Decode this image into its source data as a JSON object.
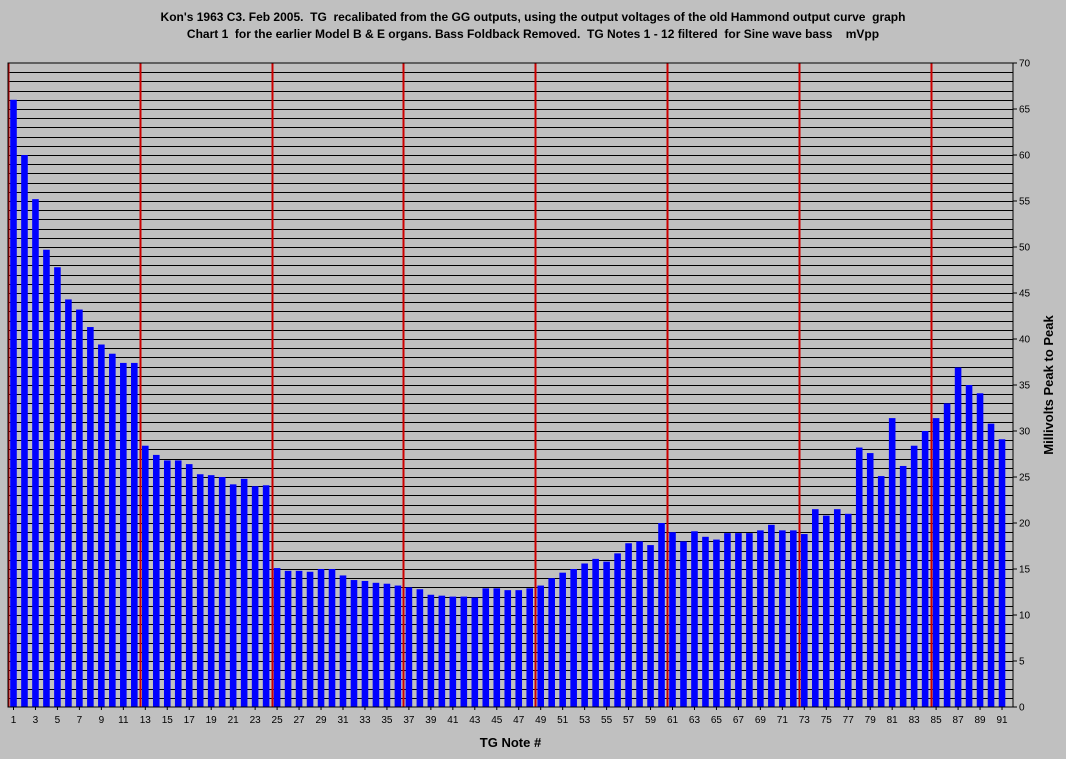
{
  "chart_data": {
    "type": "bar",
    "title_line1": "Kon's 1963 C3. Feb 2005.  TG  recalibated from the GG outputs, using the output voltages of the old Hammond output curve  graph",
    "title_line2": "Chart 1  for the earlier Model B & E organs. Bass Foldback Removed.  TG Notes 1 - 12 filtered  for Sine wave bass    mVpp",
    "xlabel": "TG Note #",
    "ylabel": "Millivolts Peak to Peak",
    "ylim": [
      0,
      70
    ],
    "y_ticks": [
      0,
      5,
      10,
      15,
      20,
      25,
      30,
      35,
      40,
      45,
      50,
      55,
      60,
      65,
      70
    ],
    "x_tick_labels": [
      "1",
      "3",
      "5",
      "7",
      "9",
      "11",
      "13",
      "15",
      "17",
      "19",
      "21",
      "23",
      "25",
      "27",
      "29",
      "31",
      "33",
      "35",
      "37",
      "39",
      "41",
      "43",
      "45",
      "47",
      "49",
      "51",
      "53",
      "55",
      "57",
      "59",
      "61",
      "63",
      "65",
      "67",
      "69",
      "71",
      "73",
      "75",
      "77",
      "79",
      "81",
      "83",
      "85",
      "87",
      "89",
      "91"
    ],
    "red_divider_notes": [
      1,
      13,
      25,
      37,
      49,
      61,
      73,
      85
    ],
    "x": [
      1,
      2,
      3,
      4,
      5,
      6,
      7,
      8,
      9,
      10,
      11,
      12,
      13,
      14,
      15,
      16,
      17,
      18,
      19,
      20,
      21,
      22,
      23,
      24,
      25,
      26,
      27,
      28,
      29,
      30,
      31,
      32,
      33,
      34,
      35,
      36,
      37,
      38,
      39,
      40,
      41,
      42,
      43,
      44,
      45,
      46,
      47,
      48,
      49,
      50,
      51,
      52,
      53,
      54,
      55,
      56,
      57,
      58,
      59,
      60,
      61,
      62,
      63,
      64,
      65,
      66,
      67,
      68,
      69,
      70,
      71,
      72,
      73,
      74,
      75,
      76,
      77,
      78,
      79,
      80,
      81,
      82,
      83,
      84,
      85,
      86,
      87,
      88,
      89,
      90,
      91
    ],
    "values": [
      66,
      60,
      55.2,
      49.7,
      47.8,
      44.3,
      43.2,
      41.3,
      39.4,
      38.4,
      37.4,
      37.4,
      28.4,
      27.4,
      26.8,
      26.8,
      26.4,
      25.3,
      25.2,
      25,
      24.2,
      24.8,
      24,
      24.1,
      15.1,
      14.8,
      14.8,
      14.7,
      15,
      15,
      14.3,
      13.8,
      13.7,
      13.5,
      13.4,
      13.2,
      13,
      12.8,
      12.2,
      12.1,
      12,
      12,
      11.9,
      12.9,
      12.9,
      12.7,
      12.7,
      12.9,
      13.2,
      14,
      14.6,
      15,
      15.6,
      16.1,
      15.8,
      16.7,
      17.8,
      18,
      17.6,
      20,
      19,
      18,
      19.1,
      18.5,
      18.2,
      18.9,
      18.9,
      18.9,
      19.2,
      19.8,
      19.2,
      19.2,
      18.8,
      21.5,
      20.8,
      21.5,
      21,
      28.2,
      27.6,
      25.1,
      31.4,
      26.2,
      28.4,
      30,
      31.4,
      33,
      36.9,
      35,
      34.1,
      30.8,
      29.1
    ],
    "grid": true,
    "bar_color": "#0000ff",
    "grid_color": "#000000",
    "divider_color": "#cc0000",
    "plot_bg": "#c0c0c0"
  }
}
